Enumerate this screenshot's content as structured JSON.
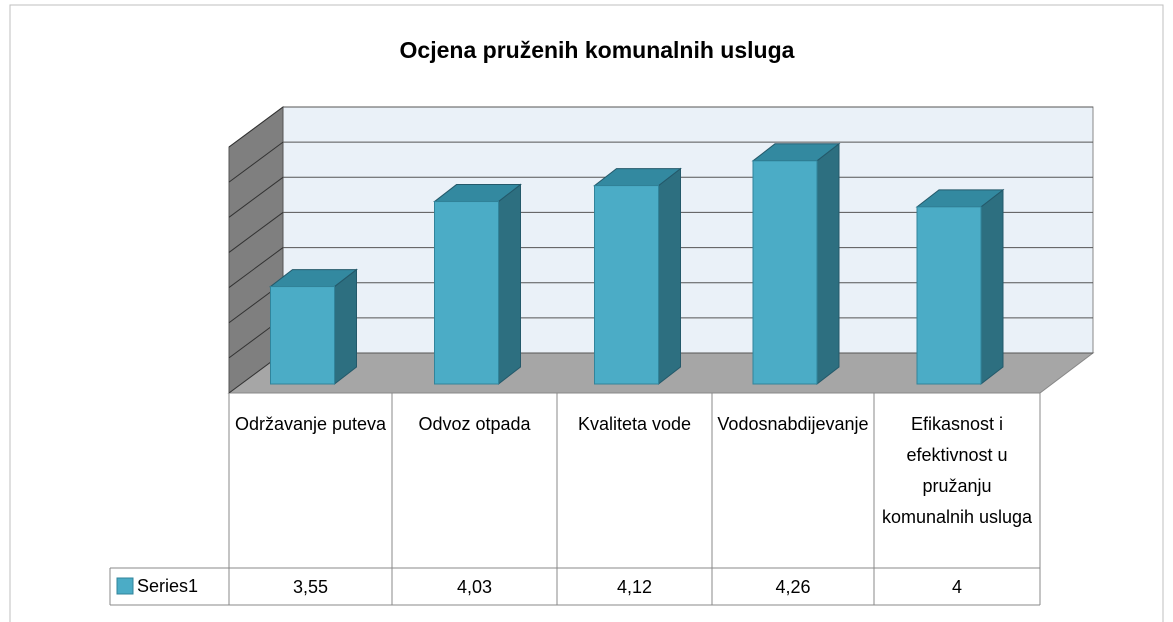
{
  "chart_data": {
    "type": "bar3d",
    "title": "Ocjena pruženih komunalnih usluga",
    "categories": [
      "Održavanje puteva",
      "Odvoz otpada",
      "Kvaliteta vode",
      "Vodosnabdijevanje",
      "Efikasnost i efektivnost u pružanju komunalnih usluga"
    ],
    "series": [
      {
        "name": "Series1",
        "color": "#4bacc6",
        "values": [
          3.55,
          4.03,
          4.12,
          4.26,
          4
        ],
        "value_labels": [
          "3,55",
          "4,03",
          "4,12",
          "4,26",
          "4"
        ]
      }
    ],
    "ylim": [
      3,
      4.4
    ],
    "yticks": [
      3,
      3.2,
      3.4,
      3.6,
      3.8,
      4,
      4.2,
      4.4
    ],
    "grid": true
  }
}
